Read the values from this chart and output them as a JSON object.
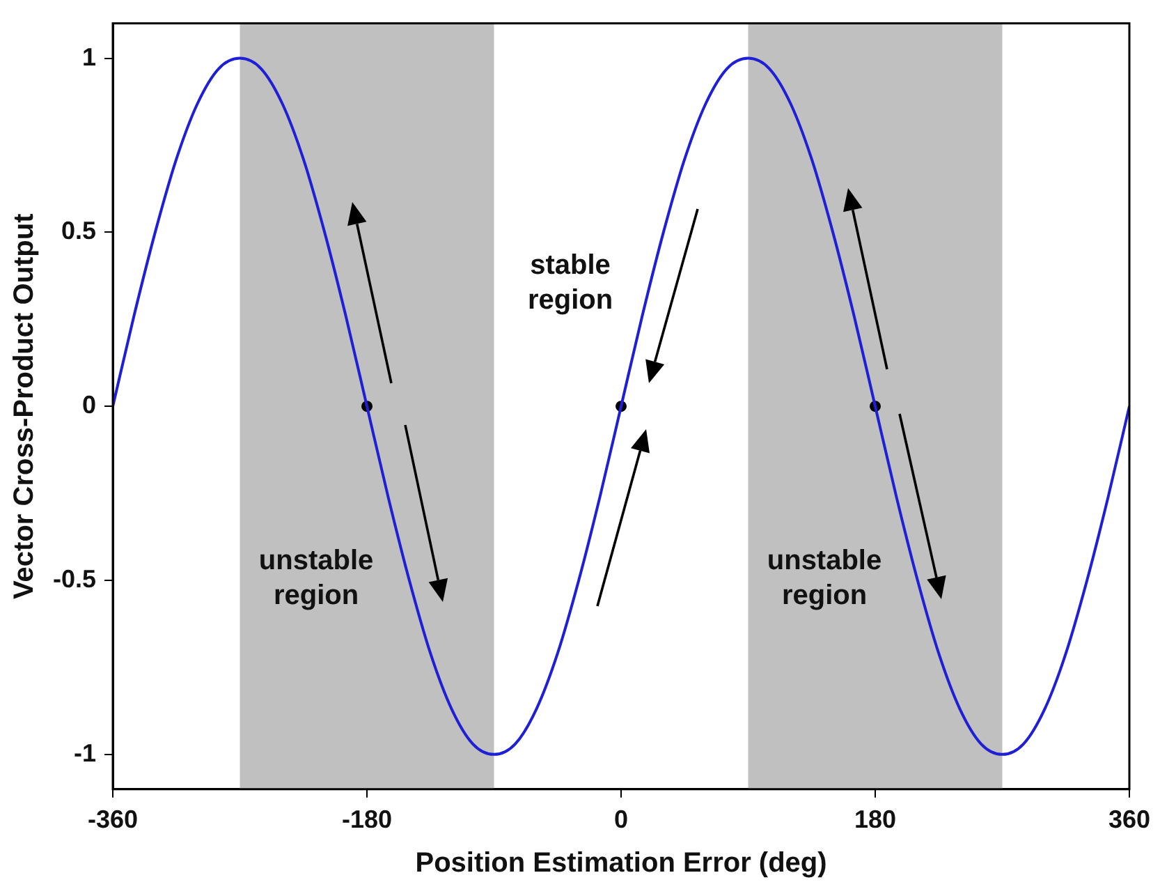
{
  "chart_data": {
    "type": "line",
    "xlabel": "Position Estimation Error (deg)",
    "ylabel": "Vector Cross-Product Output",
    "x": [
      -360,
      -345,
      -330,
      -315,
      -300,
      -285,
      -270,
      -255,
      -240,
      -225,
      -210,
      -195,
      -180,
      -165,
      -150,
      -135,
      -120,
      -105,
      -90,
      -75,
      -60,
      -45,
      -30,
      -15,
      0,
      15,
      30,
      45,
      60,
      75,
      90,
      105,
      120,
      135,
      150,
      165,
      180,
      195,
      210,
      225,
      240,
      255,
      270,
      285,
      300,
      315,
      330,
      345,
      360
    ],
    "series": [
      {
        "color": "#1f1fd6",
        "values": [
          0,
          0.26,
          0.5,
          0.71,
          0.87,
          0.97,
          1,
          0.97,
          0.87,
          0.71,
          0.5,
          0.26,
          0,
          -0.26,
          -0.5,
          -0.71,
          -0.87,
          -0.97,
          -1,
          -0.97,
          -0.87,
          -0.71,
          -0.5,
          -0.26,
          0,
          0.26,
          0.5,
          0.71,
          0.87,
          0.97,
          1,
          0.97,
          0.87,
          0.71,
          0.5,
          0.26,
          0,
          -0.26,
          -0.5,
          -0.71,
          -0.87,
          -0.97,
          -1,
          -0.97,
          -0.87,
          -0.71,
          -0.5,
          -0.26,
          0
        ]
      },
      {
        "type": "scatter",
        "color": "#000000",
        "marker": "circle",
        "x": [
          -180,
          0,
          180
        ],
        "values": [
          0,
          0,
          0
        ]
      }
    ],
    "bands": [
      {
        "axis": "x",
        "from": -270,
        "to": -90,
        "color": "#c0c0c0",
        "label": "unstable region"
      },
      {
        "axis": "x",
        "from": 90,
        "to": 270,
        "color": "#c0c0c0",
        "label": "unstable region"
      }
    ],
    "annotations": [
      "stable region"
    ],
    "xlim": [
      -360,
      360
    ],
    "xticks": [
      -360,
      -180,
      0,
      180,
      360
    ],
    "ylim": [
      -1.1,
      1.1
    ],
    "yticks": [
      -1,
      -0.5,
      0,
      0.5,
      1
    ],
    "grid": false,
    "legend": false,
    "marker": "none",
    "line_style": "solid"
  }
}
